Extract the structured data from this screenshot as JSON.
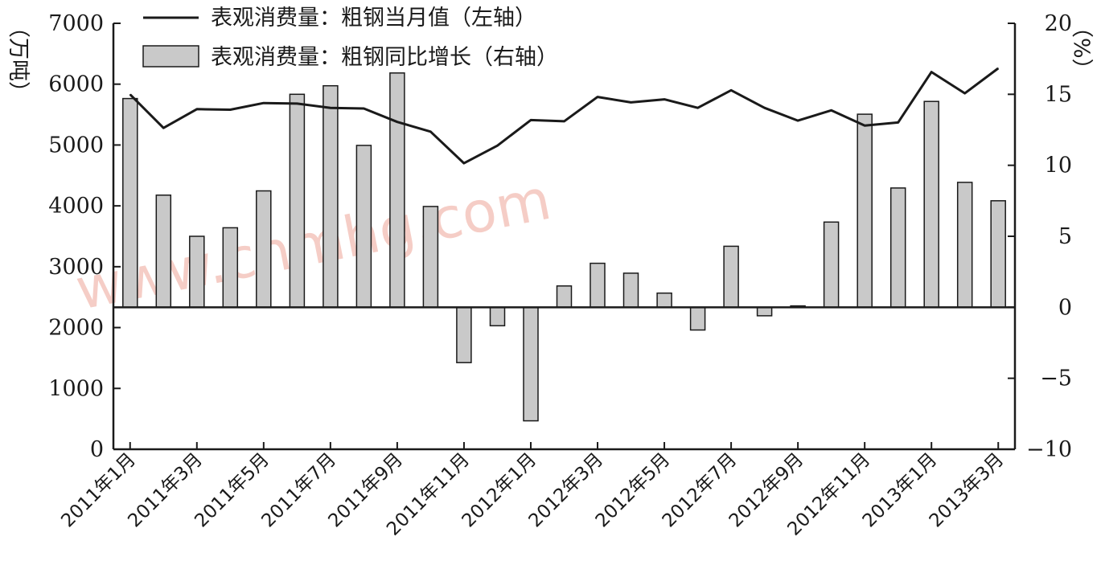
{
  "chart_data": {
    "type": "bar+line",
    "title": "",
    "categories": [
      "2011年1月",
      "2011年2月",
      "2011年3月",
      "2011年4月",
      "2011年5月",
      "2011年6月",
      "2011年7月",
      "2011年8月",
      "2011年9月",
      "2011年10月",
      "2011年11月",
      "2011年12月",
      "2012年1月",
      "2012年2月",
      "2012年3月",
      "2012年4月",
      "2012年5月",
      "2012年6月",
      "2012年7月",
      "2012年8月",
      "2012年9月",
      "2012年10月",
      "2012年11月",
      "2012年12月",
      "2013年1月",
      "2013年2月",
      "2013年3月"
    ],
    "x_tick_labels": [
      "2011年1月",
      "2011年3月",
      "2011年5月",
      "2011年7月",
      "2011年9月",
      "2011年11月",
      "2012年1月",
      "2012年3月",
      "2012年5月",
      "2012年7月",
      "2012年9月",
      "2012年11月",
      "2013年1月",
      "2013年3月"
    ],
    "series": [
      {
        "name": "表观消费量：粗钢当月值（左轴）",
        "type": "line",
        "axis": "left",
        "color": "#1a1a1a",
        "values": [
          5830,
          5280,
          5590,
          5580,
          5690,
          5680,
          5610,
          5600,
          5380,
          5220,
          4700,
          4990,
          5410,
          5390,
          5790,
          5700,
          5750,
          5610,
          5900,
          5610,
          5400,
          5570,
          5320,
          5370,
          6200,
          5850,
          6260
        ]
      },
      {
        "name": "表观消费量：粗钢同比增长（右轴）",
        "type": "bar",
        "axis": "right",
        "color": "#c9c9c9",
        "values": [
          14.7,
          7.9,
          5.0,
          5.6,
          8.2,
          15.0,
          15.6,
          11.4,
          16.5,
          7.1,
          -3.9,
          -1.3,
          -8.0,
          1.5,
          3.1,
          2.4,
          1.0,
          -1.6,
          4.3,
          -0.6,
          0.1,
          6.0,
          13.6,
          8.4,
          14.5,
          8.8,
          7.5
        ]
      }
    ],
    "y_left": {
      "label": "（万吨）",
      "ylim": [
        0,
        7000
      ],
      "ticks": [
        0,
        1000,
        2000,
        3000,
        4000,
        5000,
        6000,
        7000
      ]
    },
    "y_right": {
      "label": "（%）",
      "ylim": [
        -10,
        20
      ],
      "ticks": [
        -10,
        -5,
        0,
        5,
        10,
        15,
        20
      ],
      "tick_labels": [
        "−10",
        "−5",
        "0",
        "5",
        "10",
        "15",
        "20"
      ]
    },
    "grid": false,
    "legend_position": "top-left",
    "watermark": "www.cnmhg.com"
  }
}
